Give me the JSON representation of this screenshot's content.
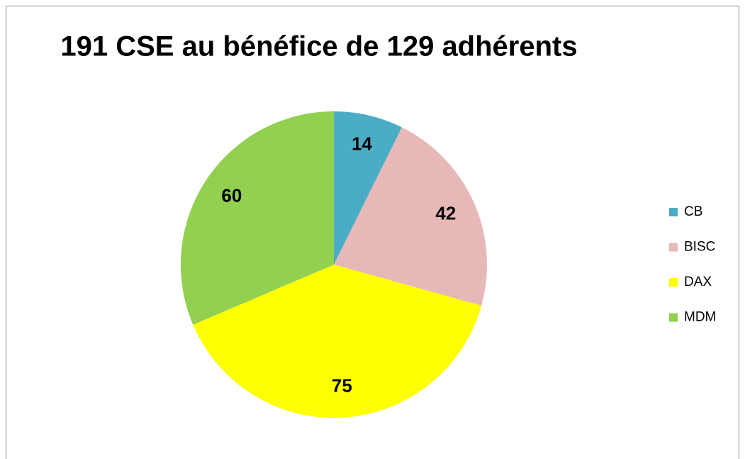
{
  "chart_data": {
    "type": "pie",
    "title": "191 CSE au bénéfice de 129 adhérents",
    "categories": [
      "CB",
      "BISC",
      "DAX",
      "MDM"
    ],
    "values": [
      14,
      42,
      75,
      60
    ],
    "colors": [
      "#4bacc6",
      "#e6b9b8",
      "#ffff00",
      "#92d050"
    ],
    "legend": "right"
  }
}
